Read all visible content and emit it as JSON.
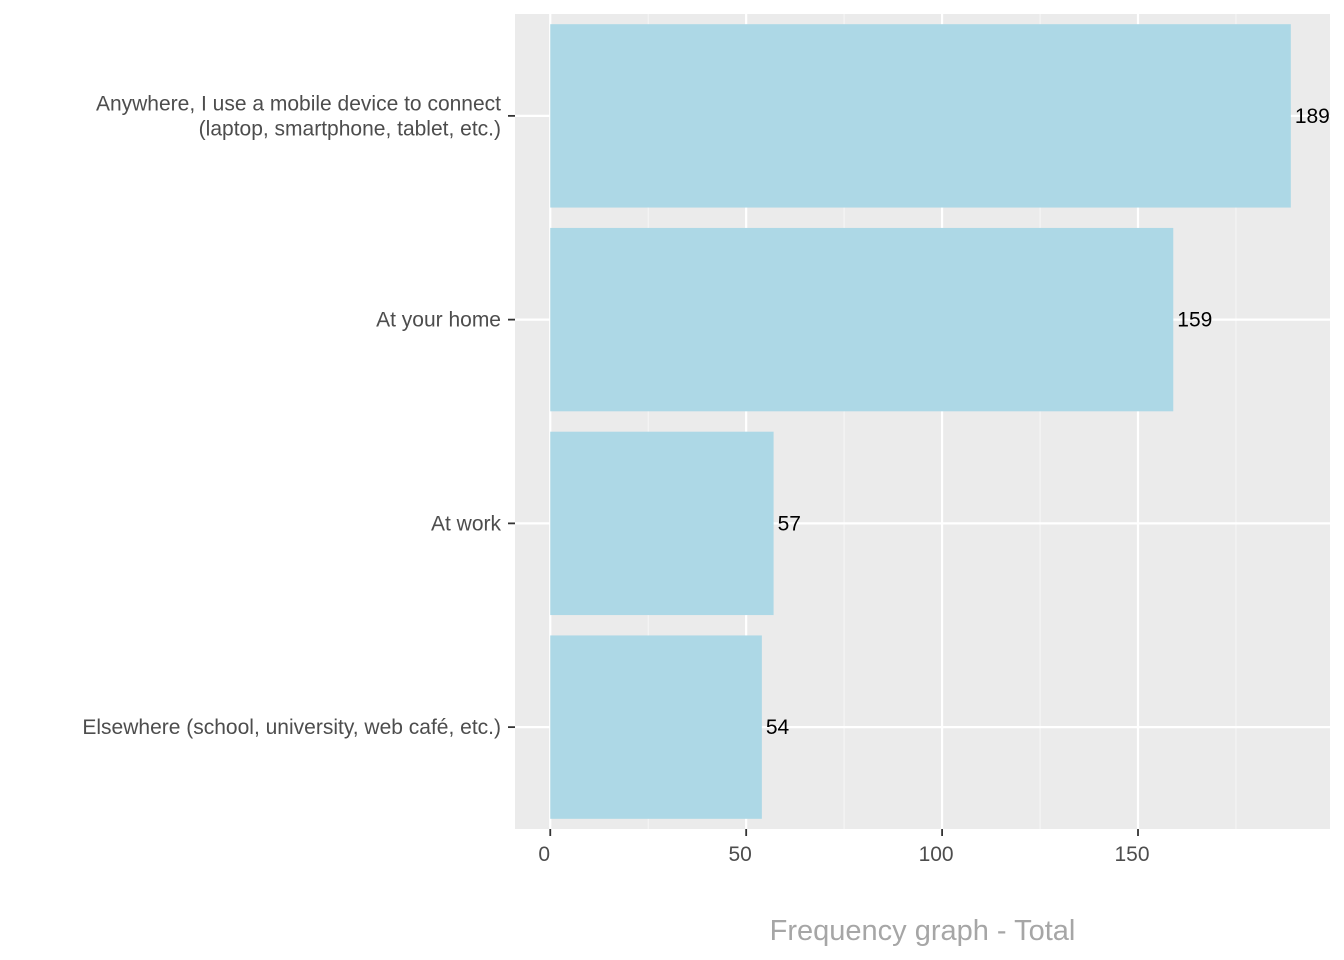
{
  "chart_data": {
    "type": "bar",
    "orientation": "horizontal",
    "categories": [
      [
        "Anywhere, I use a mobile device to connect",
        "(laptop, smartphone, tablet, etc.)"
      ],
      [
        "At your home"
      ],
      [
        "At work"
      ],
      [
        "Elsewhere (school, university, web café, etc.)"
      ]
    ],
    "values": [
      189,
      159,
      57,
      54
    ],
    "data_labels": [
      "189",
      "159",
      "57",
      "54"
    ],
    "xlabel": "Frequency graph - Total",
    "ylabel": "",
    "title": "",
    "xlim": [
      -9,
      199
    ],
    "xticks": [
      0,
      50,
      100,
      150
    ],
    "xtick_labels": [
      "0",
      "50",
      "100",
      "150"
    ],
    "grid": true,
    "legend": "none",
    "colors": {
      "bar": "#add8e6",
      "panel": "#ebebeb",
      "grid_major": "#ffffff",
      "grid_minor": "#f5f5f5",
      "tick_text": "#4d4d4d",
      "data_label_text": "#000000",
      "axis_title_text": "#a6a6a6"
    }
  }
}
